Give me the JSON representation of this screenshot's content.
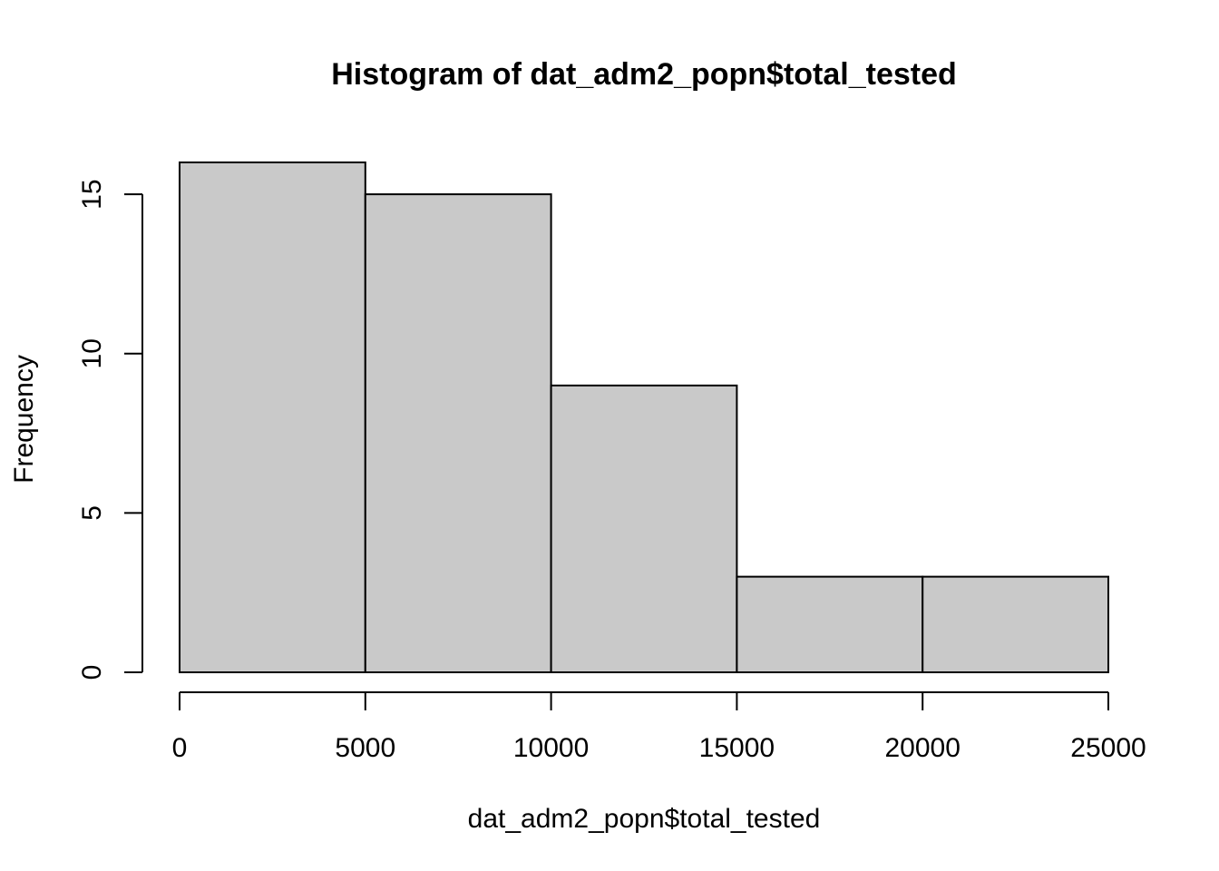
{
  "chart_data": {
    "type": "bar",
    "title": "Histogram of dat_adm2_popn$total_tested",
    "xlabel": "dat_adm2_popn$total_tested",
    "ylabel": "Frequency",
    "bins": [
      {
        "x0": 0,
        "x1": 5000,
        "count": 16
      },
      {
        "x0": 5000,
        "x1": 10000,
        "count": 15
      },
      {
        "x0": 10000,
        "x1": 15000,
        "count": 9
      },
      {
        "x0": 15000,
        "x1": 20000,
        "count": 3
      },
      {
        "x0": 20000,
        "x1": 25000,
        "count": 3
      }
    ],
    "xticks": [
      0,
      5000,
      10000,
      15000,
      20000,
      25000
    ],
    "yticks": [
      0,
      5,
      10,
      15
    ],
    "xlim": [
      0,
      25000
    ],
    "ylim": [
      0,
      16
    ],
    "grid": false,
    "colors": {
      "bar_fill": "#c9c9c9",
      "bar_stroke": "#000000",
      "background": "#ffffff"
    }
  }
}
